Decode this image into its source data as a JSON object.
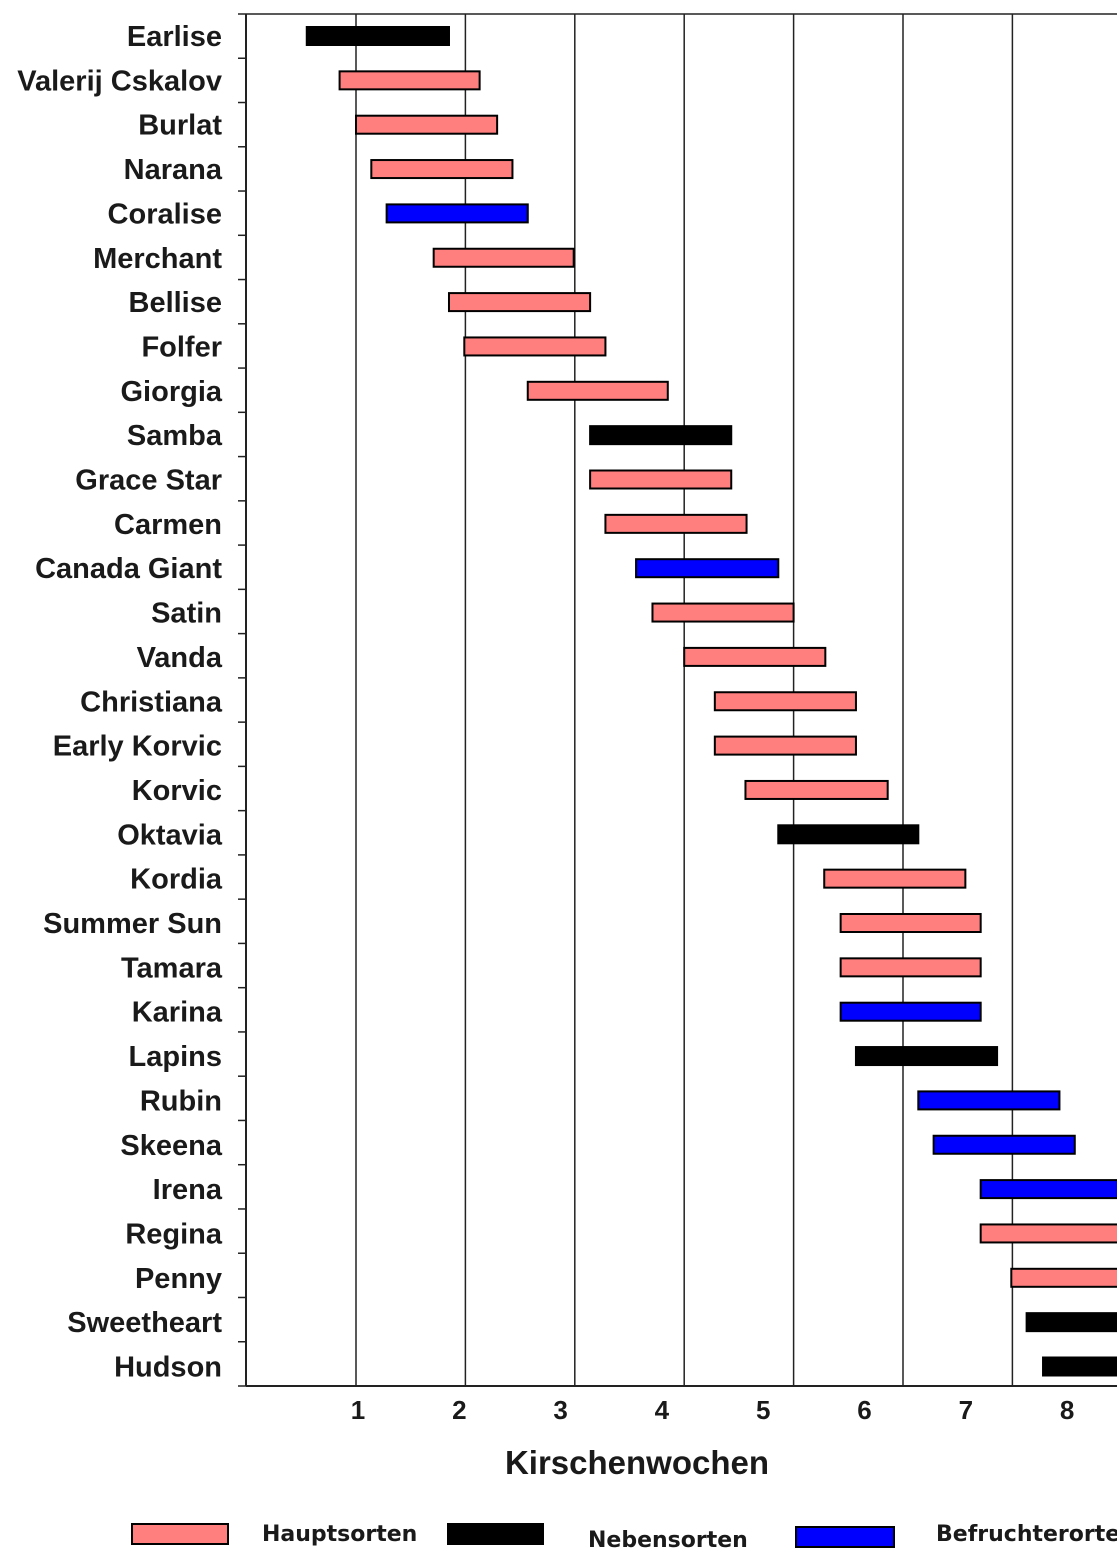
{
  "chart_data": {
    "type": "bar",
    "orientation": "horizontal-range",
    "xlabel": "Kirschenwochen",
    "x_ticks": [
      "1",
      "2",
      "3",
      "4",
      "5",
      "6",
      "7",
      "8"
    ],
    "grid": "vertical",
    "legend_placement": "bottom",
    "series": [
      {
        "name": "Hauptsorten",
        "color": "#ff7f7f"
      },
      {
        "name": "Nebensorten",
        "color": "#000000"
      },
      {
        "name": "Befruchterorten",
        "color": "#0000ff"
      }
    ],
    "categories": [
      {
        "label": "Earlise",
        "start": 0.55,
        "end": 1.85,
        "group": "Nebensorten"
      },
      {
        "label": "Valerij Cskalov",
        "start": 0.85,
        "end": 2.13,
        "group": "Hauptsorten"
      },
      {
        "label": "Burlat",
        "start": 1.0,
        "end": 2.29,
        "group": "Hauptsorten"
      },
      {
        "label": "Narana",
        "start": 1.14,
        "end": 2.43,
        "group": "Hauptsorten"
      },
      {
        "label": "Coralise",
        "start": 1.28,
        "end": 2.57,
        "group": "Befruchterorten"
      },
      {
        "label": "Merchant",
        "start": 1.71,
        "end": 2.99,
        "group": "Hauptsorten"
      },
      {
        "label": "Bellise",
        "start": 1.85,
        "end": 3.14,
        "group": "Hauptsorten"
      },
      {
        "label": "Folfer",
        "start": 1.99,
        "end": 3.28,
        "group": "Hauptsorten"
      },
      {
        "label": "Giorgia",
        "start": 2.57,
        "end": 3.85,
        "group": "Hauptsorten"
      },
      {
        "label": "Samba",
        "start": 3.14,
        "end": 4.43,
        "group": "Nebensorten"
      },
      {
        "label": "Grace Star",
        "start": 3.14,
        "end": 4.43,
        "group": "Hauptsorten"
      },
      {
        "label": "Carmen",
        "start": 3.28,
        "end": 4.57,
        "group": "Hauptsorten"
      },
      {
        "label": "Canada Giant",
        "start": 3.56,
        "end": 4.86,
        "group": "Befruchterorten"
      },
      {
        "label": "Satin",
        "start": 3.71,
        "end": 5.0,
        "group": "Hauptsorten"
      },
      {
        "label": "Vanda",
        "start": 4.0,
        "end": 5.29,
        "group": "Hauptsorten"
      },
      {
        "label": "Christiana",
        "start": 4.28,
        "end": 5.57,
        "group": "Hauptsorten"
      },
      {
        "label": "Early Korvic",
        "start": 4.28,
        "end": 5.57,
        "group": "Hauptsorten"
      },
      {
        "label": "Korvic",
        "start": 4.56,
        "end": 5.86,
        "group": "Hauptsorten"
      },
      {
        "label": "Oktavia",
        "start": 4.86,
        "end": 6.14,
        "group": "Nebensorten"
      },
      {
        "label": "Kordia",
        "start": 5.28,
        "end": 6.57,
        "group": "Hauptsorten"
      },
      {
        "label": "Summer Sun",
        "start": 5.43,
        "end": 6.71,
        "group": "Hauptsorten"
      },
      {
        "label": "Tamara",
        "start": 5.43,
        "end": 6.71,
        "group": "Hauptsorten"
      },
      {
        "label": "Karina",
        "start": 5.43,
        "end": 6.71,
        "group": "Befruchterorten"
      },
      {
        "label": "Lapins",
        "start": 5.57,
        "end": 6.86,
        "group": "Nebensorten"
      },
      {
        "label": "Rubin",
        "start": 6.14,
        "end": 7.43,
        "group": "Befruchterorten"
      },
      {
        "label": "Skeena",
        "start": 6.28,
        "end": 7.57,
        "group": "Befruchterorten"
      },
      {
        "label": "Irena",
        "start": 6.71,
        "end": 8.0,
        "group": "Befruchterorten"
      },
      {
        "label": "Regina",
        "start": 6.71,
        "end": 8.0,
        "group": "Hauptsorten"
      },
      {
        "label": "Penny",
        "start": 6.99,
        "end": 8.28,
        "group": "Hauptsorten"
      },
      {
        "label": "Sweetheart",
        "start": 7.13,
        "end": 8.42,
        "group": "Nebensorten"
      },
      {
        "label": "Hudson",
        "start": 7.28,
        "end": 8.57,
        "group": "Nebensorten"
      }
    ]
  }
}
